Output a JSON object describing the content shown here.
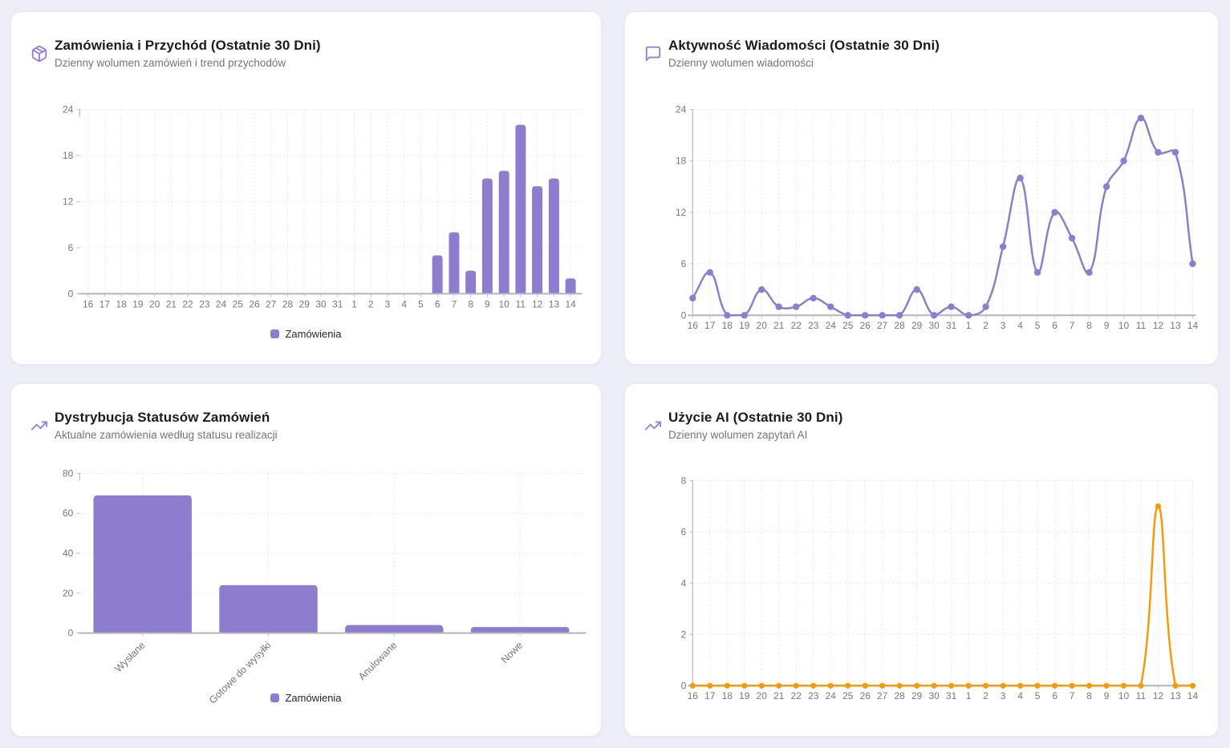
{
  "page": {
    "background": "#edeef7"
  },
  "colors": {
    "purple": "#8e7ccf",
    "orange": "#f59b0b",
    "icon_purple": "#8e80e0"
  },
  "cards": [
    {
      "title": "Zamówienia i Przychód (Ostatnie 30 Dni)",
      "subtitle": "Dzienny wolumen zamówień i trend przychodów",
      "icon": "package-icon",
      "legend": "Zamówienia"
    },
    {
      "title": "Aktywność Wiadomości (Ostatnie 30 Dni)",
      "subtitle": "Dzienny wolumen wiadomości",
      "icon": "message-square-icon"
    },
    {
      "title": "Dystrybucja Statusów Zamówień",
      "subtitle": "Aktualne zamówienia według statusu realizacji",
      "icon": "trending-up-icon",
      "legend": "Zamówienia"
    },
    {
      "title": "Użycie AI (Ostatnie 30 Dni)",
      "subtitle": "Dzienny wolumen zapytań AI",
      "icon": "trending-up-icon"
    }
  ],
  "chart_data": [
    {
      "id": "orders",
      "type": "bar",
      "title": "Zamówienia i Przychód (Ostatnie 30 Dni)",
      "categories": [
        "16",
        "17",
        "18",
        "19",
        "20",
        "21",
        "22",
        "23",
        "24",
        "25",
        "26",
        "27",
        "28",
        "29",
        "30",
        "31",
        "1",
        "2",
        "3",
        "4",
        "5",
        "6",
        "7",
        "8",
        "9",
        "10",
        "11",
        "12",
        "13",
        "14"
      ],
      "values": [
        0,
        0,
        0,
        0,
        0,
        0,
        0,
        0,
        0,
        0,
        0,
        0,
        0,
        0,
        0,
        0,
        0,
        0,
        0,
        0,
        0,
        5,
        8,
        3,
        15,
        16,
        22,
        14,
        15,
        2
      ],
      "ylim": [
        0,
        24
      ],
      "yticks": [
        0,
        6,
        12,
        18,
        24
      ],
      "legend": [
        "Zamówienia"
      ],
      "legend_position": "bottom",
      "grid": true,
      "color": "#8e7ccf"
    },
    {
      "id": "messages",
      "type": "line",
      "title": "Aktywność Wiadomości (Ostatnie 30 Dni)",
      "categories": [
        "16",
        "17",
        "18",
        "19",
        "20",
        "21",
        "22",
        "23",
        "24",
        "25",
        "26",
        "27",
        "28",
        "29",
        "30",
        "31",
        "1",
        "2",
        "3",
        "4",
        "5",
        "6",
        "7",
        "8",
        "9",
        "10",
        "11",
        "12",
        "13",
        "14"
      ],
      "values": [
        2,
        5,
        0,
        0,
        3,
        1,
        1,
        2,
        1,
        0,
        0,
        0,
        0,
        3,
        0,
        1,
        0,
        1,
        8,
        16,
        5,
        12,
        9,
        5,
        15,
        18,
        23,
        19,
        19,
        6
      ],
      "ylim": [
        0,
        24
      ],
      "yticks": [
        0,
        6,
        12,
        18,
        24
      ],
      "grid": true,
      "color": "#8e7ccf"
    },
    {
      "id": "status",
      "type": "bar",
      "title": "Dystrybucja Statusów Zamówień",
      "categories": [
        "Wysłane",
        "Gotowe do wysyłki",
        "Anulowane",
        "Nowe"
      ],
      "values": [
        69,
        24,
        4,
        3
      ],
      "ylim": [
        0,
        80
      ],
      "yticks": [
        0,
        20,
        40,
        60,
        80
      ],
      "legend": [
        "Zamówienia"
      ],
      "legend_position": "bottom",
      "grid": true,
      "color": "#8e7ccf"
    },
    {
      "id": "ai",
      "type": "line",
      "title": "Użycie AI (Ostatnie 30 Dni)",
      "categories": [
        "16",
        "17",
        "18",
        "19",
        "20",
        "21",
        "22",
        "23",
        "24",
        "25",
        "26",
        "27",
        "28",
        "29",
        "30",
        "31",
        "1",
        "2",
        "3",
        "4",
        "5",
        "6",
        "7",
        "8",
        "9",
        "10",
        "11",
        "12",
        "13",
        "14"
      ],
      "values": [
        0,
        0,
        0,
        0,
        0,
        0,
        0,
        0,
        0,
        0,
        0,
        0,
        0,
        0,
        0,
        0,
        0,
        0,
        0,
        0,
        0,
        0,
        0,
        0,
        0,
        0,
        0,
        7,
        0,
        0
      ],
      "ylim": [
        0,
        8
      ],
      "yticks": [
        0,
        2,
        4,
        6,
        8
      ],
      "grid": true,
      "color": "#f59b0b"
    }
  ]
}
